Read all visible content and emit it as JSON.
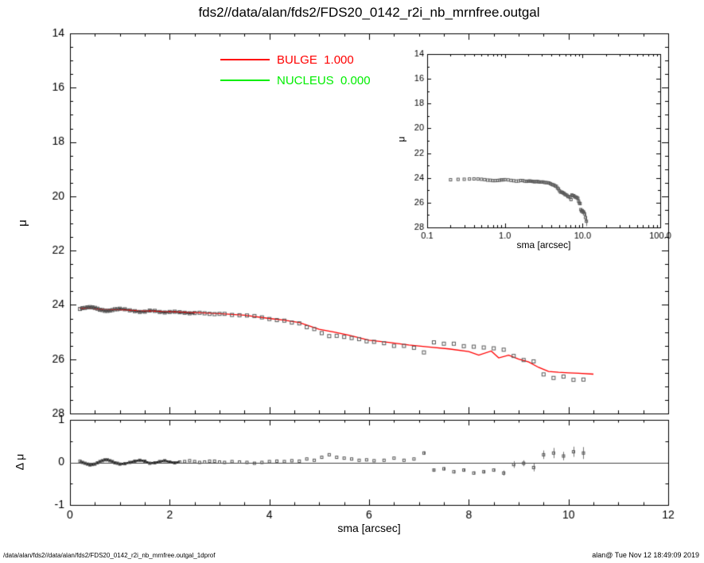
{
  "title": "fds2//data/alan/fds2/FDS20_0142_r2i_nb_mrnfree.outgal",
  "footer": {
    "left": "/data/alan/fds2//data/alan/fds2/FDS20_0142_r2i_nb_mrnfree.outgal_1dprof",
    "right": "alan@  Tue Nov 12 18:49:09 2019"
  },
  "legend": [
    {
      "label": "BULGE  1.000",
      "color": "#ff0000"
    },
    {
      "label": "NUCLEUS  0.000",
      "color": "#00ee00"
    }
  ],
  "colors": {
    "data_marker": "#5a5a5a",
    "bulge_line": "#ff0000",
    "nucleus_line": "#00ee00",
    "axis": "#000000"
  },
  "chart_data": [
    {
      "id": "main",
      "type": "scatter",
      "xlabel": "",
      "ylabel": "μ",
      "xlim": [
        0,
        12
      ],
      "ylim": [
        14,
        28
      ],
      "y_axis_inverted": true,
      "grid": false,
      "xticks": [
        0,
        2,
        4,
        6,
        8,
        10,
        12
      ],
      "yticks": [
        14,
        16,
        18,
        20,
        22,
        24,
        26,
        28
      ],
      "series": [
        {
          "name": "data",
          "marker": "open-square",
          "color": "#5a5a5a",
          "x": [
            0.2,
            0.25,
            0.3,
            0.35,
            0.4,
            0.45,
            0.5,
            0.55,
            0.6,
            0.65,
            0.7,
            0.75,
            0.8,
            0.85,
            0.9,
            0.95,
            1.0,
            1.1,
            1.2,
            1.3,
            1.4,
            1.5,
            1.6,
            1.7,
            1.8,
            1.9,
            2.0,
            2.1,
            2.2,
            2.3,
            2.4,
            2.5,
            2.6,
            2.7,
            2.8,
            2.9,
            3.0,
            3.1,
            3.25,
            3.4,
            3.55,
            3.7,
            3.85,
            4.0,
            4.15,
            4.3,
            4.45,
            4.6,
            4.75,
            4.9,
            5.05,
            5.2,
            5.35,
            5.5,
            5.65,
            5.8,
            5.95,
            6.1,
            6.3,
            6.5,
            6.7,
            6.9,
            7.1,
            7.3,
            7.5,
            7.7,
            7.9,
            8.1,
            8.3,
            8.5,
            8.7,
            8.9,
            9.1,
            9.3,
            9.5,
            9.7,
            9.9,
            10.1,
            10.3
          ],
          "mu": [
            24.15,
            24.12,
            24.11,
            24.09,
            24.08,
            24.09,
            24.11,
            24.14,
            24.18,
            24.19,
            24.22,
            24.22,
            24.21,
            24.19,
            24.16,
            24.16,
            24.14,
            24.16,
            24.2,
            24.23,
            24.26,
            24.25,
            24.21,
            24.22,
            24.26,
            24.28,
            24.26,
            24.25,
            24.27,
            24.29,
            24.31,
            24.3,
            24.29,
            24.31,
            24.33,
            24.34,
            24.33,
            24.33,
            24.37,
            24.38,
            24.39,
            24.41,
            24.46,
            24.52,
            24.56,
            24.58,
            24.65,
            24.68,
            24.82,
            24.89,
            25.04,
            25.15,
            25.14,
            25.18,
            25.22,
            25.26,
            25.34,
            25.36,
            25.41,
            25.51,
            25.51,
            25.58,
            25.75,
            25.38,
            25.43,
            25.43,
            25.52,
            25.54,
            25.57,
            25.6,
            25.65,
            25.88,
            26.03,
            26.08,
            26.56,
            26.69,
            26.64,
            26.76,
            26.75
          ]
        },
        {
          "name": "BULGE",
          "type": "line",
          "color": "#ff0000",
          "x": [
            0.2,
            0.5,
            1.0,
            1.5,
            2.0,
            2.5,
            3.0,
            3.5,
            4.0,
            4.3,
            4.6,
            5.0,
            5.3,
            5.6,
            6.0,
            6.4,
            6.8,
            7.2,
            7.6,
            8.0,
            8.2,
            8.45,
            8.6,
            8.8,
            9.0,
            9.2,
            9.4,
            9.6,
            9.8,
            10.0,
            10.2,
            10.5
          ],
          "mu": [
            24.12,
            24.15,
            24.18,
            24.22,
            24.25,
            24.28,
            24.32,
            24.38,
            24.5,
            24.56,
            24.65,
            24.9,
            25.0,
            25.12,
            25.3,
            25.38,
            25.48,
            25.55,
            25.62,
            25.72,
            25.85,
            25.7,
            25.95,
            25.85,
            26.0,
            26.1,
            26.3,
            26.45,
            26.48,
            26.5,
            26.52,
            26.55
          ]
        },
        {
          "name": "NUCLEUS",
          "type": "line",
          "color": "#00ee00",
          "x": [],
          "mu": []
        }
      ]
    },
    {
      "id": "inset",
      "type": "scatter",
      "xscale": "log",
      "xlabel": "sma [arcsec]",
      "ylabel": "μ",
      "xlim": [
        0.1,
        100.0
      ],
      "ylim": [
        14,
        28
      ],
      "y_axis_inverted": true,
      "xticks": [
        0.1,
        1.0,
        10.0,
        100.0
      ],
      "xtick_labels": [
        "0.1",
        "1.0",
        "10.0",
        "100.0"
      ],
      "yticks": [
        14,
        16,
        18,
        20,
        22,
        24,
        26,
        28
      ],
      "series_ref": "main.data",
      "extra_tail": {
        "x": [
          10.6,
          10.9,
          11.2
        ],
        "mu": [
          26.9,
          27.2,
          27.5
        ],
        "err": [
          0.2,
          0.3,
          0.4
        ]
      }
    },
    {
      "id": "residual",
      "type": "scatter",
      "xlabel": "sma [arcsec]",
      "ylabel": "Δ μ",
      "xlim": [
        0,
        12
      ],
      "ylim": [
        -1,
        1
      ],
      "xticks": [
        0,
        2,
        4,
        6,
        8,
        10,
        12
      ],
      "yticks": [
        -1,
        0,
        1
      ],
      "zero_line": true,
      "x_from": "main.data",
      "values": [
        0.03,
        0.0,
        -0.02,
        -0.04,
        -0.06,
        -0.05,
        -0.04,
        -0.01,
        0.02,
        0.04,
        0.06,
        0.06,
        0.04,
        0.02,
        -0.01,
        -0.02,
        -0.04,
        -0.03,
        0.0,
        0.03,
        0.05,
        0.03,
        -0.02,
        -0.01,
        0.02,
        0.04,
        0.01,
        -0.01,
        0.01,
        0.02,
        0.04,
        0.02,
        0.0,
        0.01,
        0.03,
        0.03,
        0.01,
        0.0,
        0.02,
        0.01,
        0.0,
        -0.02,
        0.0,
        0.02,
        0.03,
        0.02,
        0.04,
        0.03,
        0.08,
        0.05,
        0.12,
        0.18,
        0.12,
        0.1,
        0.08,
        0.05,
        0.06,
        0.04,
        0.05,
        0.1,
        0.05,
        0.08,
        0.22,
        -0.18,
        -0.15,
        -0.22,
        -0.18,
        -0.25,
        -0.22,
        -0.18,
        -0.25,
        -0.05,
        -0.02,
        -0.12,
        0.18,
        0.22,
        0.15,
        0.25,
        0.22
      ],
      "err": [
        0.02,
        0.02,
        0.02,
        0.02,
        0.02,
        0.02,
        0.02,
        0.02,
        0.02,
        0.02,
        0.02,
        0.02,
        0.02,
        0.02,
        0.02,
        0.02,
        0.02,
        0.02,
        0.02,
        0.02,
        0.02,
        0.02,
        0.02,
        0.02,
        0.02,
        0.02,
        0.02,
        0.02,
        0.02,
        0.02,
        0.02,
        0.02,
        0.02,
        0.02,
        0.02,
        0.02,
        0.02,
        0.02,
        0.02,
        0.02,
        0.02,
        0.02,
        0.02,
        0.02,
        0.02,
        0.02,
        0.02,
        0.02,
        0.02,
        0.02,
        0.02,
        0.02,
        0.02,
        0.02,
        0.02,
        0.02,
        0.02,
        0.02,
        0.02,
        0.02,
        0.02,
        0.02,
        0.04,
        0.04,
        0.04,
        0.04,
        0.04,
        0.04,
        0.04,
        0.04,
        0.06,
        0.08,
        0.07,
        0.09,
        0.1,
        0.12,
        0.1,
        0.12,
        0.14
      ]
    }
  ]
}
